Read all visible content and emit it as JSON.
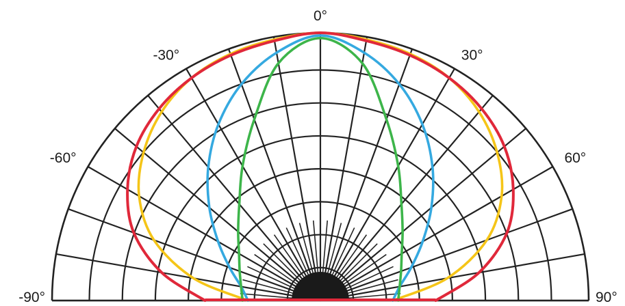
{
  "chart_data": {
    "type": "line",
    "projection": "polar-half",
    "title": "",
    "angle_ticks": [
      {
        "angle": -90,
        "label": "-90°"
      },
      {
        "angle": -60,
        "label": "-60°"
      },
      {
        "angle": -30,
        "label": "-30°"
      },
      {
        "angle": 0,
        "label": "0°"
      },
      {
        "angle": 30,
        "label": "30°"
      },
      {
        "angle": 60,
        "label": "60°"
      },
      {
        "angle": 90,
        "label": "90°"
      }
    ],
    "angle_range": [
      -90,
      90
    ],
    "radial_range": [
      0,
      1
    ],
    "radial_rings": [
      0.123,
      0.246,
      0.369,
      0.492,
      0.615,
      0.738,
      0.861,
      1.0
    ],
    "spoke_step_deg": 10,
    "grid": true,
    "legend": "none",
    "series": [
      {
        "color": "#f5c518",
        "r": [
          1.0,
          0.99,
          0.98,
          0.96,
          0.92,
          0.86,
          0.78,
          0.66,
          0.48,
          0.27
        ],
        "theta": [
          0,
          10,
          20,
          30,
          40,
          50,
          60,
          70,
          80,
          90
        ]
      },
      {
        "color": "#35a9e0",
        "r": [
          0.99,
          0.94,
          0.86,
          0.76,
          0.65,
          0.54,
          0.44,
          0.36,
          0.3,
          0.27
        ],
        "theta": [
          0,
          10,
          20,
          30,
          40,
          50,
          60,
          70,
          80,
          90
        ]
      },
      {
        "color": "#3db54a",
        "r": [
          0.98,
          0.9,
          0.72,
          0.58,
          0.47,
          0.4,
          0.35,
          0.32,
          0.3,
          0.29
        ],
        "theta": [
          0,
          10,
          20,
          30,
          40,
          50,
          60,
          70,
          80,
          90
        ]
      },
      {
        "color": "#e0283a",
        "r": [
          1.0,
          0.985,
          0.975,
          0.96,
          0.935,
          0.895,
          0.83,
          0.74,
          0.6,
          0.43
        ],
        "theta": [
          0,
          10,
          20,
          30,
          40,
          50,
          60,
          70,
          80,
          90
        ]
      }
    ]
  }
}
